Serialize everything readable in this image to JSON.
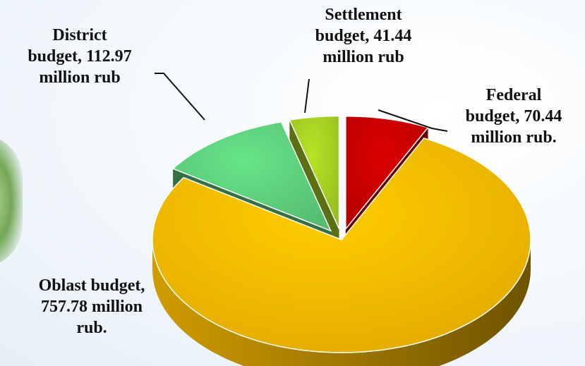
{
  "chart_data": {
    "type": "pie",
    "title": "",
    "slices": [
      {
        "name": "Federal budget",
        "value": 70.44,
        "label": "Federal budget, 70.44 million rub.",
        "color": "#c40000",
        "exploded": true
      },
      {
        "name": "Oblast budget",
        "value": 757.78,
        "label": "Oblast budget, 757.78 million rub.",
        "color": "#f5b800",
        "exploded": false
      },
      {
        "name": "District budget",
        "value": 112.97,
        "label": "District budget, 112.97 million rub",
        "color": "#5ccc7a",
        "exploded": true
      },
      {
        "name": "Settlement budget",
        "value": 41.44,
        "label": "Settlement budget, 41.44 million rub",
        "color": "#a3cc22",
        "exploded": true
      }
    ],
    "units": "million rub",
    "style": "3d-pie"
  },
  "labels": {
    "federal": [
      "Federal",
      "budget, 70.44",
      "million rub."
    ],
    "oblast": [
      "Oblast budget,",
      "757.78 million",
      "rub."
    ],
    "district": [
      "District",
      "budget, 112.97",
      "million rub"
    ],
    "settlement": [
      "Settlement",
      "budget, 41.44",
      "million rub"
    ]
  }
}
